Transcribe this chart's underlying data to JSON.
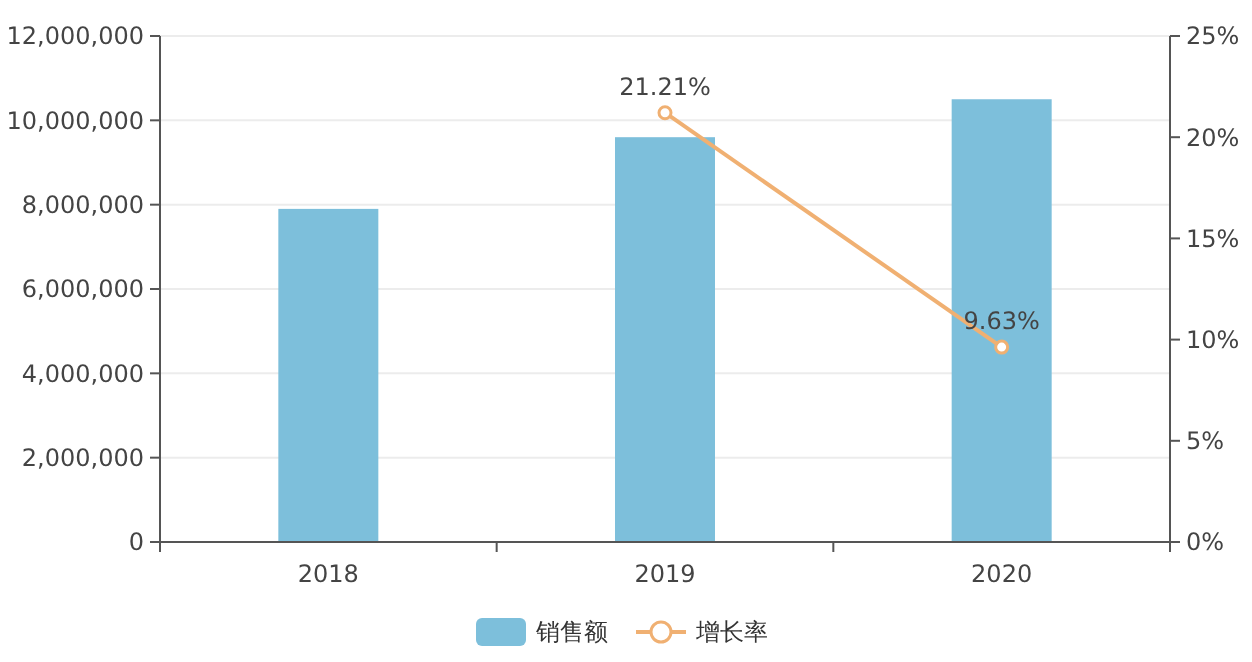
{
  "chart_data": {
    "type": "bar",
    "categories": [
      "2018",
      "2019",
      "2020"
    ],
    "series": [
      {
        "name": "销售额",
        "color": "#7dbfdb",
        "values": [
          7900000,
          9600000,
          10500000
        ]
      },
      {
        "name": "增长率",
        "type": "line",
        "axis": "y2",
        "color": "#f0b072",
        "values": [
          null,
          21.21,
          9.63
        ],
        "value_labels": [
          null,
          "21.21%",
          "9.63%"
        ],
        "marker": "circle"
      }
    ],
    "ylim": [
      0,
      12000000
    ],
    "yticks": [
      {
        "value": 0,
        "label": "0"
      },
      {
        "value": 2000000,
        "label": "2,000,000"
      },
      {
        "value": 4000000,
        "label": "4,000,000"
      },
      {
        "value": 6000000,
        "label": "6,000,000"
      },
      {
        "value": 8000000,
        "label": "8,000,000"
      },
      {
        "value": 10000000,
        "label": "10,000,000"
      },
      {
        "value": 12000000,
        "label": "12,000,000"
      }
    ],
    "y2lim": [
      0,
      25
    ],
    "y2ticks": [
      {
        "value": 0,
        "label": "0%"
      },
      {
        "value": 5,
        "label": "5%"
      },
      {
        "value": 10,
        "label": "10%"
      },
      {
        "value": 15,
        "label": "15%"
      },
      {
        "value": 20,
        "label": "20%"
      },
      {
        "value": 25,
        "label": "25%"
      }
    ],
    "grid": "y",
    "legend": "bottom"
  }
}
